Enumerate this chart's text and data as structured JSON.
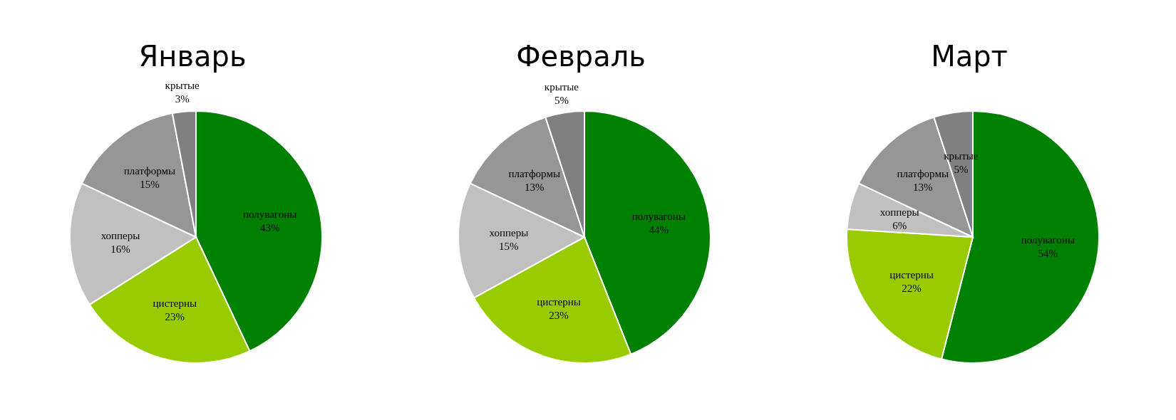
{
  "chart_data": [
    {
      "type": "pie",
      "title": "Январь",
      "categories": [
        "полувагоны",
        "цистерны",
        "хопперы",
        "платформы",
        "крытые"
      ],
      "values": [
        43,
        23,
        16,
        15,
        3
      ],
      "colors": [
        "#008000",
        "#99cc00",
        "#c0c0c0",
        "#969696",
        "#808080"
      ],
      "value_labels": [
        "43%",
        "23%",
        "16%",
        "15%",
        "3%"
      ]
    },
    {
      "type": "pie",
      "title": "Февраль",
      "categories": [
        "полувагоны",
        "цистерны",
        "хопперы",
        "платформы",
        "крытые"
      ],
      "values": [
        44,
        23,
        15,
        13,
        5
      ],
      "colors": [
        "#008000",
        "#99cc00",
        "#c0c0c0",
        "#969696",
        "#808080"
      ],
      "value_labels": [
        "44%",
        "23%",
        "15%",
        "13%",
        "5%"
      ]
    },
    {
      "type": "pie",
      "title": "Март",
      "categories": [
        "полувагоны",
        "цистерны",
        "хопперы",
        "платформы",
        "крытые"
      ],
      "values": [
        54,
        22,
        6,
        13,
        5
      ],
      "colors": [
        "#008000",
        "#99cc00",
        "#c0c0c0",
        "#969696",
        "#808080"
      ],
      "value_labels": [
        "54%",
        "22%",
        "6%",
        "13%",
        "5%"
      ]
    }
  ]
}
